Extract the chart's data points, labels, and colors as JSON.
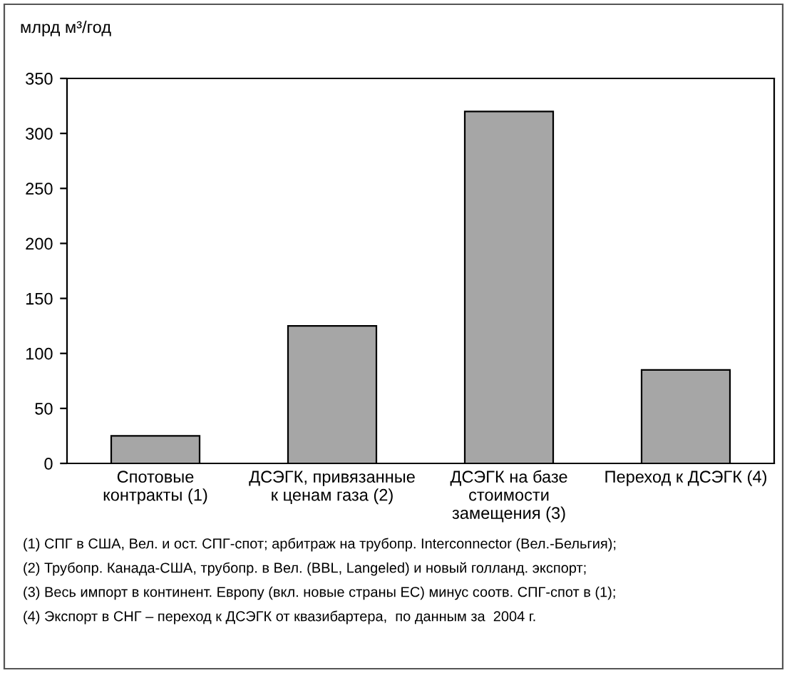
{
  "chart_data": {
    "type": "bar",
    "ylabel": "млрд м³/год",
    "categories": [
      "Спотовые\nконтракты (1)",
      "ДСЭГК, привязанные\nк ценам газа (2)",
      "ДСЭГК на базе\nстоимости\nзамещения (3)",
      "Переход к ДСЭГК (4)"
    ],
    "values": [
      25,
      125,
      320,
      85
    ],
    "color": "#a6a6a6",
    "ylim": [
      0,
      350
    ],
    "yticks": [
      0,
      50,
      100,
      150,
      200,
      250,
      300,
      350
    ],
    "grid": false,
    "annotations": [
      "(1) СПГ в США, Вел. и ост. СПГ-спот; арбитраж на трубопр. Interconnector (Вел.-Бельгия);",
      "(2) Трубопр. Канада-США, трубопр. в Вел. (BBL, Langeled) и новый голланд. экспорт;",
      "(3) Весь импорт в континент. Европу (вкл. новые страны ЕС) минус соотв. СПГ-спот в (1);",
      "(4) Экспорт в СНГ – переход к ДСЭГК от квазибартера,  по данным за  2004 г."
    ]
  }
}
